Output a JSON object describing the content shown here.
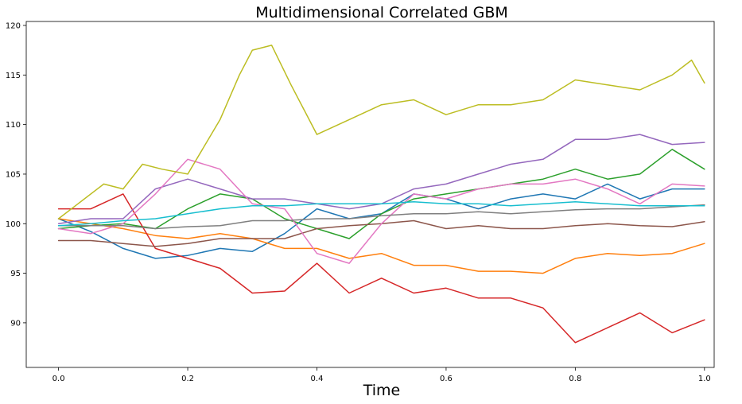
{
  "chart_data": {
    "type": "line",
    "title": "Multidimensional Correlated GBM",
    "xlabel": "Time",
    "ylabel": "",
    "xlim": [
      -0.05,
      1.015
    ],
    "ylim": [
      85.5,
      120.4
    ],
    "grid": false,
    "xticks": [
      0.0,
      0.2,
      0.4,
      0.6,
      0.8,
      1.0
    ],
    "xtick_labels": [
      "0.0",
      "0.2",
      "0.4",
      "0.6",
      "0.8",
      "1.0"
    ],
    "yticks": [
      90,
      95,
      100,
      105,
      110,
      115,
      120
    ],
    "ytick_labels": [
      "90",
      "95",
      "100",
      "105",
      "110",
      "115",
      "120"
    ],
    "series": [
      {
        "color": "#1f77b4",
        "x": [
          0,
          0.05,
          0.1,
          0.15,
          0.2,
          0.25,
          0.3,
          0.35,
          0.4,
          0.45,
          0.5,
          0.55,
          0.6,
          0.65,
          0.7,
          0.75,
          0.8,
          0.85,
          0.9,
          0.95,
          1.0
        ],
        "values": [
          100.5,
          99.2,
          97.5,
          96.5,
          96.8,
          97.5,
          97.2,
          99.0,
          101.5,
          100.5,
          101.0,
          103.0,
          102.5,
          101.5,
          102.5,
          103.0,
          102.5,
          104.0,
          102.5,
          103.5,
          103.5
        ]
      },
      {
        "color": "#ff7f0e",
        "x": [
          0,
          0.05,
          0.1,
          0.15,
          0.2,
          0.25,
          0.3,
          0.35,
          0.4,
          0.45,
          0.5,
          0.55,
          0.6,
          0.65,
          0.7,
          0.75,
          0.8,
          0.85,
          0.9,
          0.95,
          1.0
        ],
        "values": [
          100.5,
          100.0,
          99.5,
          98.8,
          98.5,
          99.0,
          98.5,
          97.5,
          97.5,
          96.5,
          97.0,
          95.8,
          95.8,
          95.2,
          95.2,
          95.0,
          96.5,
          97.0,
          96.8,
          97.0,
          98.0
        ]
      },
      {
        "color": "#2ca02c",
        "x": [
          0,
          0.05,
          0.1,
          0.15,
          0.2,
          0.25,
          0.3,
          0.35,
          0.4,
          0.45,
          0.5,
          0.55,
          0.6,
          0.65,
          0.7,
          0.75,
          0.8,
          0.85,
          0.9,
          0.95,
          1.0
        ],
        "values": [
          99.5,
          99.8,
          100.0,
          99.5,
          101.5,
          103.0,
          102.5,
          100.5,
          99.5,
          98.5,
          101.0,
          102.5,
          103.0,
          103.5,
          104.0,
          104.5,
          105.5,
          104.5,
          105.0,
          107.5,
          105.5
        ]
      },
      {
        "color": "#d62728",
        "x": [
          0,
          0.05,
          0.1,
          0.15,
          0.2,
          0.25,
          0.3,
          0.35,
          0.4,
          0.45,
          0.5,
          0.55,
          0.6,
          0.65,
          0.7,
          0.75,
          0.8,
          0.85,
          0.9,
          0.95,
          1.0
        ],
        "values": [
          101.5,
          101.5,
          103.0,
          97.5,
          96.5,
          95.5,
          93.0,
          93.2,
          96.0,
          93.0,
          94.5,
          93.0,
          93.5,
          92.5,
          92.5,
          91.5,
          88.0,
          89.5,
          91.0,
          89.0,
          90.3
        ]
      },
      {
        "color": "#9467bd",
        "x": [
          0,
          0.05,
          0.1,
          0.15,
          0.2,
          0.25,
          0.3,
          0.35,
          0.4,
          0.45,
          0.5,
          0.55,
          0.6,
          0.65,
          0.7,
          0.75,
          0.8,
          0.85,
          0.9,
          0.95,
          1.0
        ],
        "values": [
          100.0,
          100.5,
          100.5,
          103.5,
          104.5,
          103.5,
          102.5,
          102.5,
          102.0,
          101.5,
          102.0,
          103.5,
          104.0,
          105.0,
          106.0,
          106.5,
          108.5,
          108.5,
          109.0,
          108.0,
          108.2
        ]
      },
      {
        "color": "#8c564b",
        "x": [
          0,
          0.05,
          0.1,
          0.15,
          0.2,
          0.25,
          0.3,
          0.35,
          0.4,
          0.45,
          0.5,
          0.55,
          0.6,
          0.65,
          0.7,
          0.75,
          0.8,
          0.85,
          0.9,
          0.95,
          1.0
        ],
        "values": [
          98.3,
          98.3,
          98.0,
          97.7,
          98.0,
          98.5,
          98.5,
          98.5,
          99.5,
          99.8,
          100.0,
          100.3,
          99.5,
          99.8,
          99.5,
          99.5,
          99.8,
          100.0,
          99.8,
          99.7,
          100.2
        ]
      },
      {
        "color": "#e377c2",
        "x": [
          0,
          0.05,
          0.1,
          0.15,
          0.2,
          0.25,
          0.3,
          0.35,
          0.4,
          0.45,
          0.5,
          0.55,
          0.6,
          0.65,
          0.7,
          0.75,
          0.8,
          0.85,
          0.9,
          0.95,
          1.0
        ],
        "values": [
          99.5,
          99.0,
          100.0,
          103.0,
          106.5,
          105.5,
          102.0,
          101.5,
          97.0,
          96.0,
          100.0,
          103.0,
          102.5,
          103.5,
          104.0,
          104.0,
          104.5,
          103.5,
          102.0,
          104.0,
          103.8
        ]
      },
      {
        "color": "#7f7f7f",
        "x": [
          0,
          0.05,
          0.1,
          0.15,
          0.2,
          0.25,
          0.3,
          0.35,
          0.4,
          0.45,
          0.5,
          0.55,
          0.6,
          0.65,
          0.7,
          0.75,
          0.8,
          0.85,
          0.9,
          0.95,
          1.0
        ],
        "values": [
          99.8,
          99.8,
          99.8,
          99.5,
          99.7,
          99.8,
          100.3,
          100.3,
          100.5,
          100.5,
          100.8,
          101.0,
          101.0,
          101.2,
          101.0,
          101.2,
          101.4,
          101.5,
          101.5,
          101.7,
          101.9
        ]
      },
      {
        "color": "#bcbd22",
        "x": [
          0,
          0.03,
          0.07,
          0.1,
          0.13,
          0.16,
          0.2,
          0.25,
          0.28,
          0.3,
          0.33,
          0.36,
          0.4,
          0.45,
          0.5,
          0.55,
          0.6,
          0.65,
          0.7,
          0.75,
          0.8,
          0.85,
          0.9,
          0.95,
          0.98,
          1.0
        ],
        "values": [
          100.5,
          102.0,
          104.0,
          103.5,
          106.0,
          105.5,
          105.0,
          110.5,
          115.0,
          117.5,
          118.0,
          114.0,
          109.0,
          110.5,
          112.0,
          112.5,
          111.0,
          112.0,
          112.0,
          112.5,
          114.5,
          114.0,
          113.5,
          115.0,
          116.5,
          114.2
        ]
      },
      {
        "color": "#17becf",
        "x": [
          0,
          0.05,
          0.1,
          0.15,
          0.2,
          0.25,
          0.3,
          0.35,
          0.4,
          0.45,
          0.5,
          0.55,
          0.6,
          0.65,
          0.7,
          0.75,
          0.8,
          0.85,
          0.9,
          0.95,
          1.0
        ],
        "values": [
          99.8,
          100.0,
          100.3,
          100.5,
          101.0,
          101.5,
          101.8,
          101.8,
          102.0,
          102.0,
          102.0,
          102.2,
          102.0,
          102.0,
          101.8,
          102.0,
          102.2,
          102.0,
          101.8,
          101.8,
          101.8
        ]
      }
    ]
  }
}
